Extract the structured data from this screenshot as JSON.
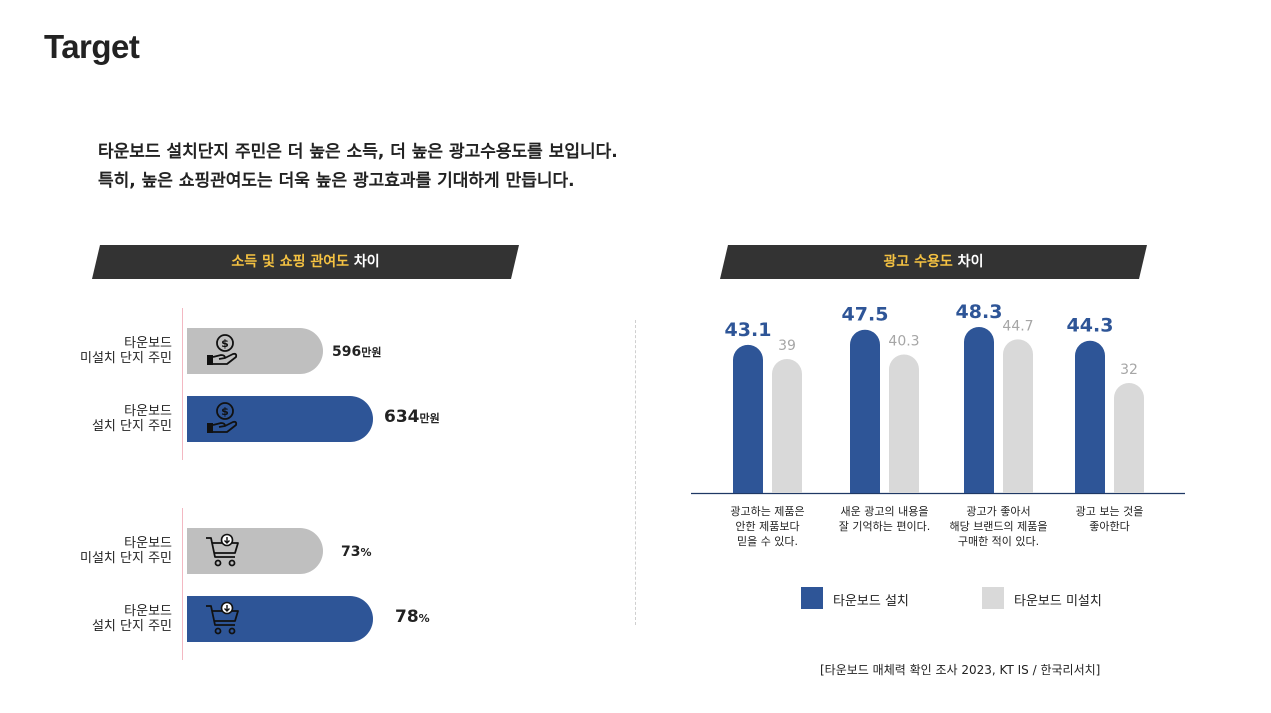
{
  "page": {
    "title": "Target"
  },
  "intro": {
    "line1": "타운보드 설치단지 주민은 더 높은 소득, 더 높은 광고수용도를 보입니다.",
    "line2": "특히, 높은 쇼핑관여도는 더욱 높은 광고효과를 기대하게 만듭니다."
  },
  "left_banner": {
    "highlight": "소득 및 쇼핑 관여도",
    "rest": " 차이"
  },
  "right_banner": {
    "highlight": "광고 수용도",
    "rest": " 차이"
  },
  "colors": {
    "installed": "#2e5597",
    "not_installed": "#d9d9d9",
    "hbar_not_installed": "#bfbfbf",
    "banner": "#333333",
    "highlight": "#f5c242"
  },
  "income": {
    "rows": [
      {
        "label1": "타운보드",
        "label2": "미설치 단지 주민",
        "value": "596",
        "unit": "만원",
        "icon": "money-hand-icon"
      },
      {
        "label1": "타운보드",
        "label2": "설치 단지 주민",
        "value": "634",
        "unit": "만원",
        "icon": "money-hand-icon"
      }
    ]
  },
  "shopping": {
    "rows": [
      {
        "label1": "타운보드",
        "label2": "미설치 단지 주민",
        "value": "73",
        "unit": "%",
        "icon": "shopping-cart-icon"
      },
      {
        "label1": "타운보드",
        "label2": "설치 단지 주민",
        "value": "78",
        "unit": "%",
        "icon": "shopping-cart-icon"
      }
    ]
  },
  "chart_data": [
    {
      "type": "bar",
      "orientation": "horizontal",
      "categories": [
        "타운보드 미설치 단지 주민",
        "타운보드 설치 단지 주민"
      ],
      "values": [
        596,
        634
      ],
      "unit": "만원"
    },
    {
      "type": "bar",
      "orientation": "horizontal",
      "categories": [
        "타운보드 미설치 단지 주민",
        "타운보드 설치 단지 주민"
      ],
      "values": [
        73,
        78
      ],
      "unit": "%"
    },
    {
      "type": "bar",
      "categories": [
        [
          "광고하는 제품은",
          "안한 제품보다",
          "믿을 수 있다."
        ],
        [
          "새운 광고의 내용을",
          "잘 기억하는 편이다."
        ],
        [
          "광고가 좋아서",
          "해당 브랜드의 제품을",
          "구매한 적이 있다."
        ],
        [
          "광고 보는 것을",
          "좋아한다"
        ]
      ],
      "series": [
        {
          "name": "타운보드 설치",
          "values": [
            43.1,
            47.5,
            48.3,
            44.3
          ],
          "labels": [
            "43.1",
            "47.5",
            "48.3",
            "44.3"
          ]
        },
        {
          "name": "타운보드 미설치",
          "values": [
            39,
            40.3,
            44.7,
            32
          ],
          "labels": [
            "39",
            "40.3",
            "44.7",
            "32"
          ]
        }
      ],
      "legend": "bottom"
    }
  ],
  "legend": {
    "installed": "타운보드 설치",
    "not_installed": "타운보드 미설치"
  },
  "source": "[타운보드 매체력 확인 조사 2023, KT IS / 한국리서치]"
}
